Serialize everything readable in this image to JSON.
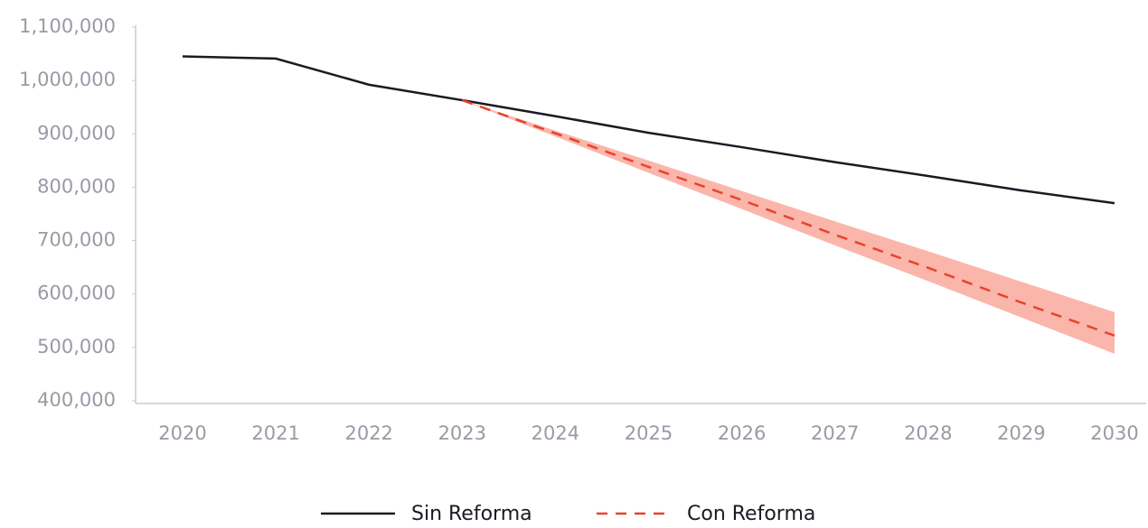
{
  "chart_data": {
    "type": "line",
    "categories": [
      "2020",
      "2021",
      "2022",
      "2023",
      "2024",
      "2025",
      "2026",
      "2027",
      "2028",
      "2029",
      "2030"
    ],
    "series": [
      {
        "name": "Sin Reforma",
        "color": "#1a1a24",
        "dash": false,
        "values": [
          1045000,
          1041000,
          992000,
          963000,
          933000,
          902000,
          875000,
          847000,
          821000,
          794000,
          770000
        ]
      },
      {
        "name": "Con Reforma",
        "color": "#e8432d",
        "dash": true,
        "values": [
          null,
          null,
          null,
          963000,
          901000,
          838000,
          776000,
          711000,
          649000,
          584000,
          522000
        ],
        "band_color": "#fbb6ab",
        "upper": [
          null,
          null,
          null,
          963000,
          906000,
          850000,
          793000,
          736000,
          680000,
          623000,
          566000
        ],
        "lower": [
          null,
          null,
          null,
          963000,
          895000,
          827000,
          759000,
          691000,
          624000,
          556000,
          488000
        ]
      }
    ],
    "ylim": [
      400000,
      1100000
    ],
    "yticks": [
      {
        "value": 400000,
        "label": "400,000"
      },
      {
        "value": 500000,
        "label": "500,000"
      },
      {
        "value": 600000,
        "label": "600,000"
      },
      {
        "value": 700000,
        "label": "700,000"
      },
      {
        "value": 800000,
        "label": "800,000"
      },
      {
        "value": 900000,
        "label": "900,000"
      },
      {
        "value": 1000000,
        "label": "1,000,000"
      },
      {
        "value": 1100000,
        "label": "1,100,000"
      }
    ],
    "grid": false,
    "legend": "bottom"
  }
}
